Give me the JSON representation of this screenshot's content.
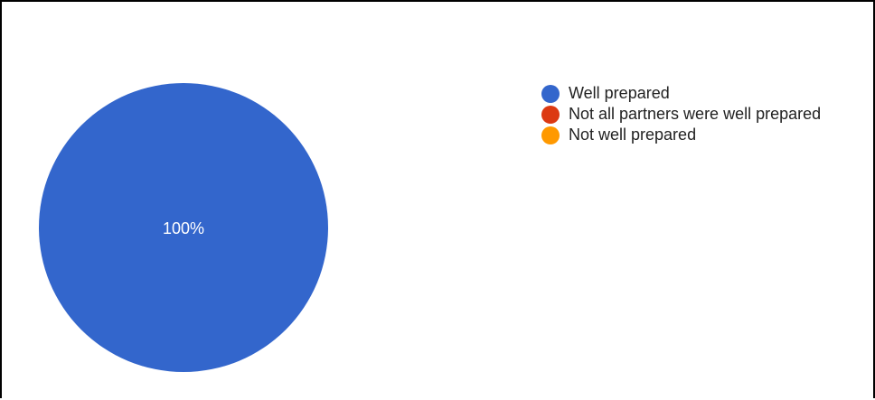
{
  "chart_data": {
    "type": "pie",
    "title": "",
    "slices": [
      {
        "label": "Well prepared",
        "value": 100,
        "color": "#3366cc"
      },
      {
        "label": "Not all partners were well prepared",
        "value": 0,
        "color": "#dc3912"
      },
      {
        "label": "Not well prepared",
        "value": 0,
        "color": "#ff9900"
      }
    ],
    "data_labels": [
      "100%"
    ],
    "legend_position": "right"
  }
}
